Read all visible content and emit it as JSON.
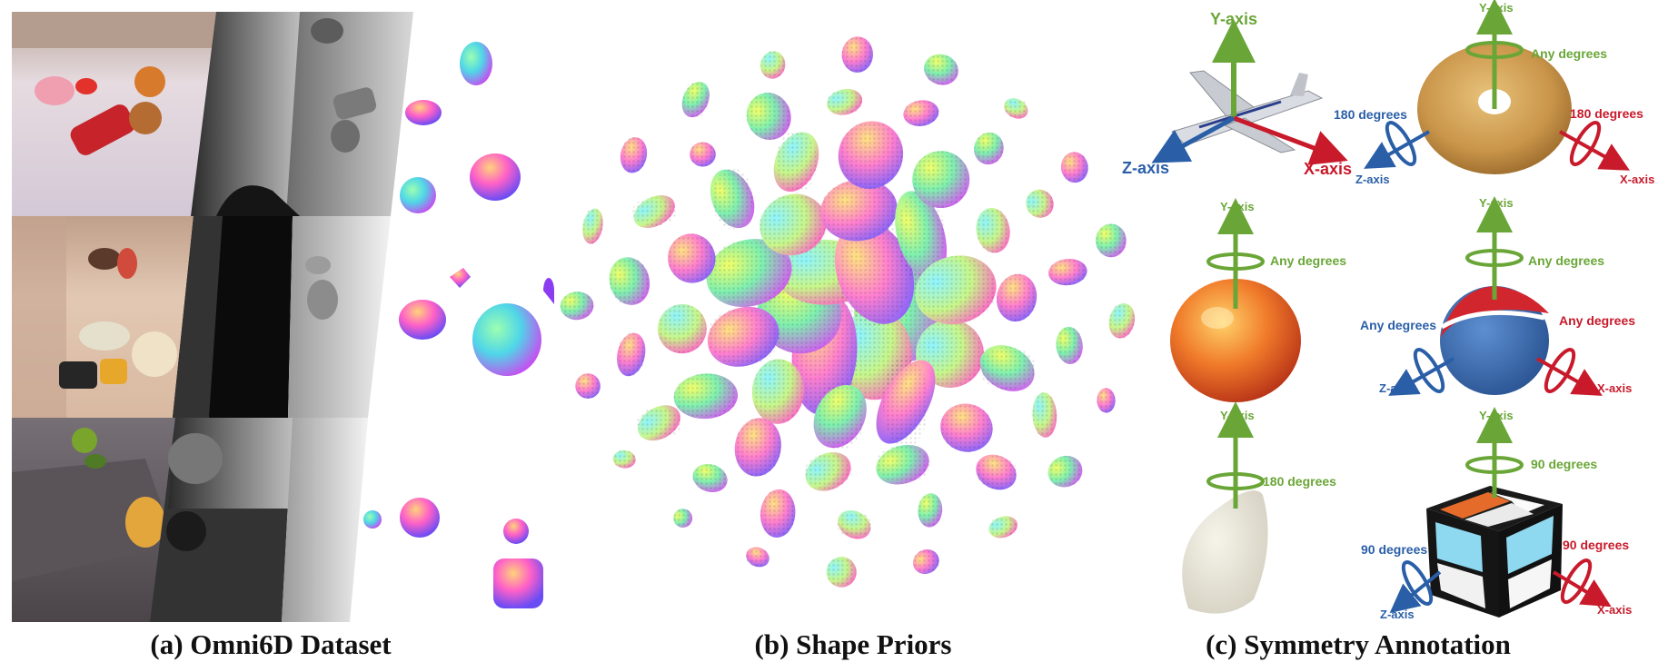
{
  "captions": {
    "a": "(a) Omni6D Dataset",
    "b": "(b) Shape Priors",
    "c": "(c) Symmetry Annotation"
  },
  "colors": {
    "y_axis": "#6aa637",
    "x_axis": "#c81a2b",
    "z_axis": "#2a5fa8"
  },
  "symmetry": {
    "airplane": {
      "y": "Y-axis",
      "x": "X-axis",
      "z": "Z-axis"
    },
    "donut": {
      "y": "Y-axis",
      "x": "X-axis",
      "z": "Z-axis",
      "y_rot": "Any degrees",
      "x_rot": "180 degrees",
      "z_rot": "180 degrees"
    },
    "apple": {
      "y": "Y-axis",
      "y_rot": "Any degrees"
    },
    "ball": {
      "y": "Y-axis",
      "x": "X-axis",
      "z": "Z-axis",
      "y_rot": "Any degrees",
      "x_rot": "Any degrees",
      "z_rot": "Any degrees"
    },
    "cloth": {
      "y": "Y-axis",
      "y_rot": "180 degrees"
    },
    "cube": {
      "y": "Y-axis",
      "x": "X-axis",
      "z": "Z-axis",
      "y_rot": "90 degrees",
      "x_rot": "90 degrees",
      "z_rot": "90 degrees"
    }
  }
}
